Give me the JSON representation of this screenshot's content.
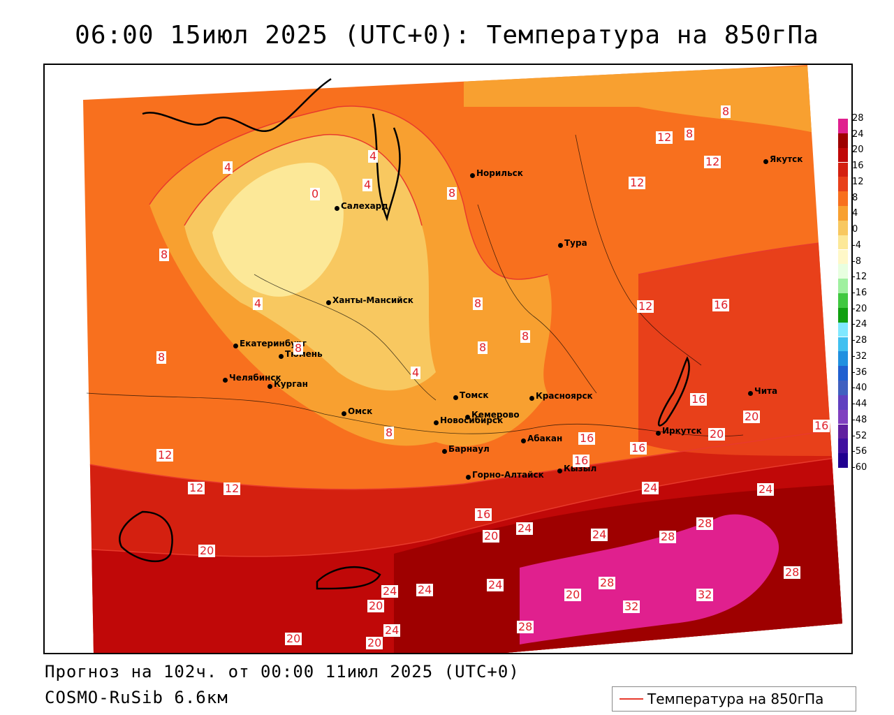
{
  "title": "06:00 15июл 2025 (UTC+0): Температура на 850гПа",
  "footer": {
    "forecast": "Прогноз на 102ч. от 00:00 11июл 2025 (UTC+0)",
    "model": "COSMO-RuSib 6.6км"
  },
  "legend": {
    "label": "Температура на 850гПа",
    "line_color": "#e83a2c"
  },
  "colorbar": {
    "ticks": [
      "28",
      "24",
      "20",
      "16",
      "12",
      "8",
      "4",
      "0",
      "-4",
      "-8",
      "-12",
      "-16",
      "-20",
      "-24",
      "-28",
      "-32",
      "-36",
      "-40",
      "-44",
      "-48",
      "-52",
      "-56",
      "-60"
    ],
    "colors": [
      "#e0208e",
      "#9e0000",
      "#c00808",
      "#d42010",
      "#e8401a",
      "#f8701e",
      "#f8a030",
      "#f8c860",
      "#fce898",
      "#fff8c8",
      "#e8ffe0",
      "#a0f0a0",
      "#40c840",
      "#10a010",
      "#80e8ff",
      "#40c0f0",
      "#2090e0",
      "#2060d0",
      "#4060c0",
      "#6040c0",
      "#8040c0",
      "#6020a0",
      "#4010a0",
      "#200090"
    ]
  },
  "cities": [
    {
      "name": "Норильск"
    },
    {
      "name": "Якутск"
    },
    {
      "name": "Салехард"
    },
    {
      "name": "Тура"
    },
    {
      "name": "Ханты-Мансийск"
    },
    {
      "name": "Екатеринбург"
    },
    {
      "name": "Тюмень"
    },
    {
      "name": "Челябинск"
    },
    {
      "name": "Курган"
    },
    {
      "name": "Омск"
    },
    {
      "name": "Новосибирск"
    },
    {
      "name": "Томск"
    },
    {
      "name": "Кемерово"
    },
    {
      "name": "Красноярск"
    },
    {
      "name": "Барнаул"
    },
    {
      "name": "Абакан"
    },
    {
      "name": "Горно-Алтайск"
    },
    {
      "name": "Кызыл"
    },
    {
      "name": "Иркутск"
    },
    {
      "name": "Чита"
    }
  ],
  "contour_labels": [
    "8",
    "12",
    "8",
    "12",
    "12",
    "4",
    "4",
    "0",
    "4",
    "8",
    "8",
    "4",
    "12",
    "16",
    "8",
    "8",
    "8",
    "8",
    "8",
    "4",
    "8",
    "12",
    "16",
    "16",
    "16",
    "20",
    "20",
    "16",
    "12",
    "16",
    "12",
    "20",
    "24",
    "24",
    "16",
    "20",
    "24",
    "24",
    "28",
    "28",
    "20",
    "28",
    "28",
    "32",
    "32",
    "24",
    "24",
    "24",
    "20",
    "20",
    "28",
    "24",
    "20"
  ]
}
